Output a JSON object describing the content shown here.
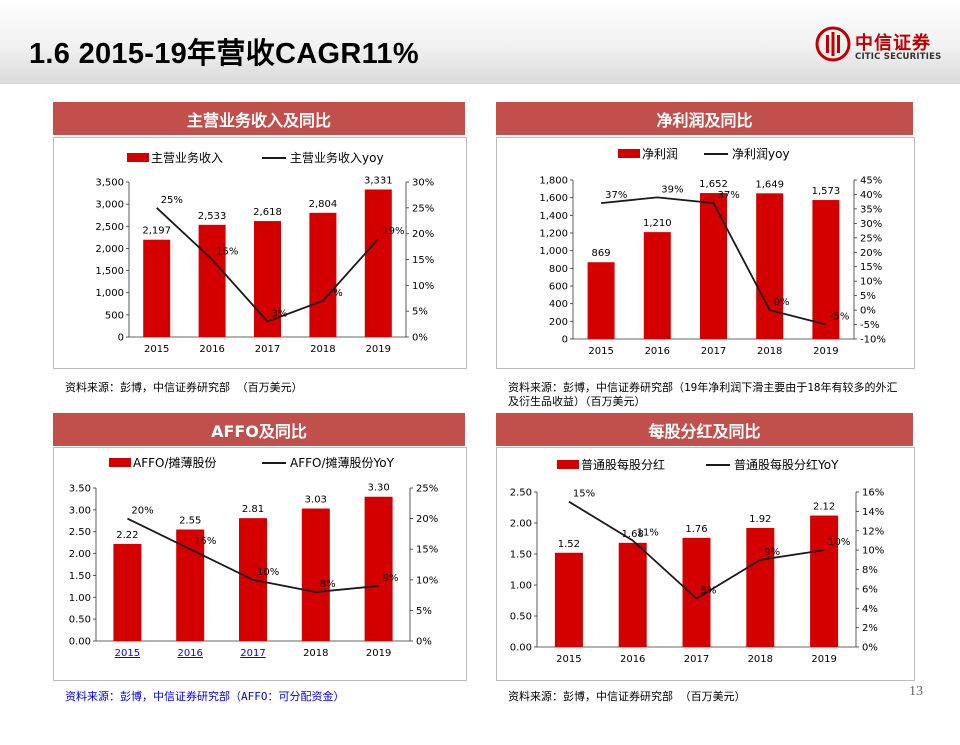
{
  "slide": {
    "title": "1.6  2015-19年营收CAGR11%",
    "page_number": "13",
    "logo": {
      "name": "中信证券",
      "subtitle": "CITIC SECURITIES"
    }
  },
  "colors": {
    "bar": "#d40000",
    "line": "#1a1a1a",
    "header": "#c1504d"
  },
  "panels": [
    {
      "header": "主营业务收入及同比",
      "source": "资料来源：彭博，中信证券研究部    （百万美元）"
    },
    {
      "header": "净利润及同比",
      "source": "资料来源：彭博，中信证券研究部（19年净利润下滑主要由于18年有较多的外汇及衍生品收益）（百万美元）"
    },
    {
      "header": "AFFO及同比",
      "source": "资料来源：彭博，中信证券研究部（AFFO：可分配资金）"
    },
    {
      "header": "每股分红及同比",
      "source": "资料来源：彭博，中信证券研究部    （百万美元）"
    }
  ],
  "chart_data": [
    {
      "type": "bar+line",
      "categories": [
        "2015",
        "2016",
        "2017",
        "2018",
        "2019"
      ],
      "series": [
        {
          "name": "主营业务收入",
          "kind": "bar",
          "axis": "left",
          "values": [
            2197,
            2533,
            2618,
            2804,
            3331
          ],
          "labels": [
            "2,197",
            "2,533",
            "2,618",
            "2,804",
            "3,331"
          ]
        },
        {
          "name": "主营业务收入yoy",
          "kind": "line",
          "axis": "right",
          "values": [
            25,
            15,
            3,
            7,
            19
          ],
          "labels": [
            "25%",
            "15%",
            "3%",
            "7%",
            "19%"
          ]
        }
      ],
      "y_left": {
        "min": 0,
        "max": 3500,
        "ticks": [
          "0",
          "500",
          "1,000",
          "1,500",
          "2,000",
          "2,500",
          "3,000",
          "3,500"
        ]
      },
      "y_right": {
        "min": 0,
        "max": 30,
        "ticks": [
          "0%",
          "5%",
          "10%",
          "15%",
          "20%",
          "25%",
          "30%"
        ]
      },
      "legend": "top-center",
      "grid": false
    },
    {
      "type": "bar+line",
      "categories": [
        "2015",
        "2016",
        "2017",
        "2018",
        "2019"
      ],
      "series": [
        {
          "name": "净利润",
          "kind": "bar",
          "axis": "left",
          "values": [
            869,
            1210,
            1652,
            1649,
            1573
          ],
          "labels": [
            "869",
            "1,210",
            "1,652",
            "1,649",
            "1,573"
          ]
        },
        {
          "name": "净利润yoy",
          "kind": "line",
          "axis": "right",
          "values": [
            37,
            39,
            37,
            0,
            -5
          ],
          "labels": [
            "37%",
            "39%",
            "37%",
            "0%",
            "-5%"
          ]
        }
      ],
      "y_left": {
        "min": 0,
        "max": 1800,
        "ticks": [
          "0",
          "200",
          "400",
          "600",
          "800",
          "1,000",
          "1,200",
          "1,400",
          "1,600",
          "1,800"
        ]
      },
      "y_right": {
        "min": -10,
        "max": 45,
        "ticks": [
          "-10%",
          "-5%",
          "0%",
          "5%",
          "10%",
          "15%",
          "20%",
          "25%",
          "30%",
          "35%",
          "40%",
          "45%"
        ]
      },
      "legend": "top-center",
      "grid": false
    },
    {
      "type": "bar+line",
      "categories": [
        "2015",
        "2016",
        "2017",
        "2018",
        "2019"
      ],
      "series": [
        {
          "name": "AFFO/摊薄股份",
          "kind": "bar",
          "axis": "left",
          "values": [
            2.22,
            2.55,
            2.81,
            3.03,
            3.3
          ],
          "labels": [
            "2.22",
            "2.55",
            "2.81",
            "3.03",
            "3.30"
          ]
        },
        {
          "name": "AFFO/摊薄股份YoY",
          "kind": "line",
          "axis": "right",
          "values": [
            20,
            15,
            10,
            8,
            9
          ],
          "labels": [
            "20%",
            "15%",
            "10%",
            "8%",
            "9%"
          ]
        }
      ],
      "y_left": {
        "min": 0,
        "max": 3.5,
        "ticks": [
          "0.00",
          "0.50",
          "1.00",
          "1.50",
          "2.00",
          "2.50",
          "3.00",
          "3.50"
        ]
      },
      "y_right": {
        "min": 0,
        "max": 25,
        "ticks": [
          "0%",
          "5%",
          "10%",
          "15%",
          "20%",
          "25%"
        ]
      },
      "legend": "top-center",
      "grid": false
    },
    {
      "type": "bar+line",
      "categories": [
        "2015",
        "2016",
        "2017",
        "2018",
        "2019"
      ],
      "series": [
        {
          "name": "普通股每股分红",
          "kind": "bar",
          "axis": "left",
          "values": [
            1.52,
            1.68,
            1.76,
            1.92,
            2.12
          ],
          "labels": [
            "1.52",
            "1.68",
            "1.76",
            "1.92",
            "2.12"
          ]
        },
        {
          "name": "普通股每股分红YoY",
          "kind": "line",
          "axis": "right",
          "values": [
            15,
            11,
            5,
            9,
            10
          ],
          "labels": [
            "15%",
            "11%",
            "5%",
            "9%",
            "10%"
          ]
        }
      ],
      "y_left": {
        "min": 0,
        "max": 2.5,
        "ticks": [
          "0.00",
          "0.50",
          "1.00",
          "1.50",
          "2.00",
          "2.50"
        ]
      },
      "y_right": {
        "min": 0,
        "max": 16,
        "ticks": [
          "0%",
          "2%",
          "4%",
          "6%",
          "8%",
          "10%",
          "12%",
          "14%",
          "16%"
        ]
      },
      "legend": "top-center",
      "grid": false
    }
  ]
}
